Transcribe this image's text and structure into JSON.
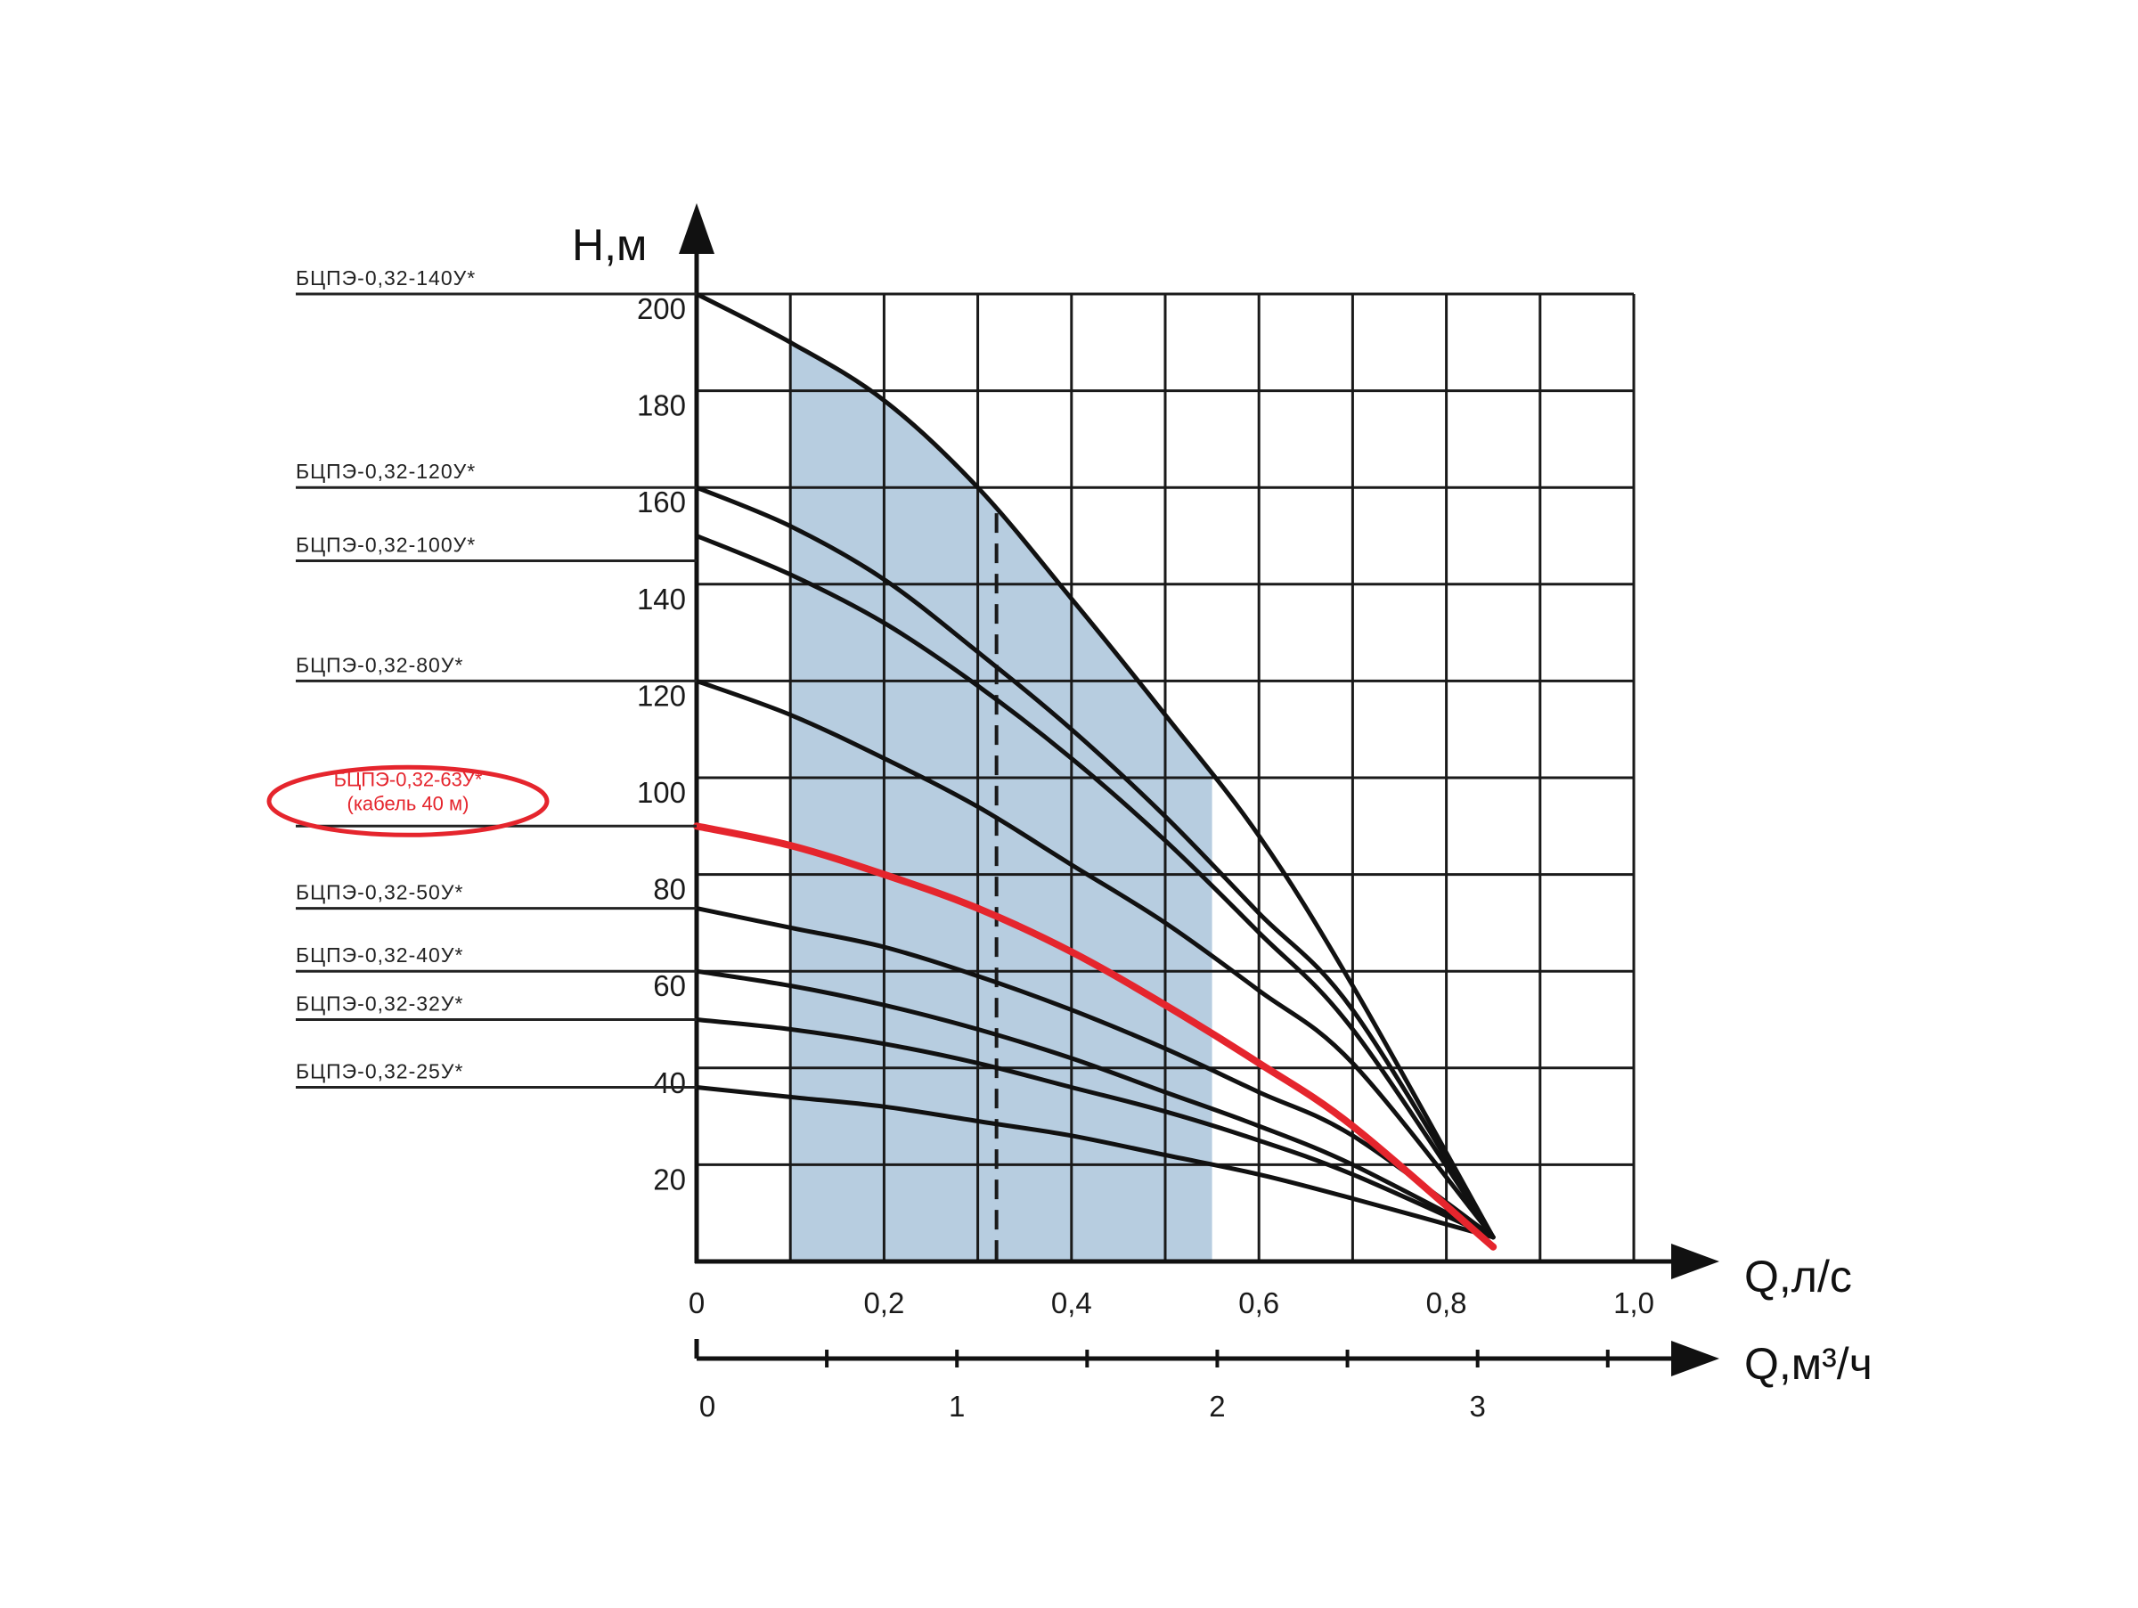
{
  "chart_data": {
    "type": "line",
    "ylabel": "H,м",
    "xlabel": "Q,л/с",
    "x2label": "Q,м³/ч",
    "xlim": [
      0,
      1.0
    ],
    "ylim": [
      0,
      200
    ],
    "grid": true,
    "x_ticks": [
      "0",
      "0,2",
      "0,4",
      "0,6",
      "0,8",
      "1,0"
    ],
    "x2_ticks": [
      "0",
      "1",
      "2",
      "3"
    ],
    "y_ticks": [
      "20",
      "40",
      "60",
      "80",
      "100",
      "120",
      "140",
      "160",
      "180",
      "200"
    ],
    "working_range_q_ls": [
      0.1,
      0.55
    ],
    "nominal_q_ls": 0.32,
    "highlight_color": "#e5252d",
    "shade_color": "#b7cde0",
    "series": [
      {
        "name": "БЦПЭ-0,32-140У*",
        "shut_off_head": 200,
        "highlight": false,
        "x": [
          0,
          0.1,
          0.2,
          0.3,
          0.4,
          0.5,
          0.6,
          0.7,
          0.85
        ],
        "y": [
          200,
          190,
          178,
          160,
          137,
          113,
          88,
          57,
          5
        ]
      },
      {
        "name": "БЦПЭ-0,32-120У*",
        "shut_off_head": 160,
        "highlight": false,
        "x": [
          0,
          0.1,
          0.2,
          0.3,
          0.4,
          0.5,
          0.6,
          0.7,
          0.85
        ],
        "y": [
          160,
          152,
          141,
          126,
          110,
          92,
          72,
          52,
          5
        ]
      },
      {
        "name": "БЦПЭ-0,32-100У*",
        "shut_off_head": 150,
        "highlight": false,
        "x": [
          0,
          0.1,
          0.2,
          0.3,
          0.4,
          0.5,
          0.6,
          0.7,
          0.85
        ],
        "y": [
          150,
          142,
          132,
          119,
          104,
          87,
          68,
          48,
          5
        ]
      },
      {
        "name": "БЦПЭ-0,32-80У*",
        "shut_off_head": 120,
        "highlight": false,
        "x": [
          0,
          0.1,
          0.2,
          0.3,
          0.4,
          0.5,
          0.6,
          0.7,
          0.85
        ],
        "y": [
          120,
          113,
          104,
          94,
          82,
          70,
          56,
          41,
          5
        ]
      },
      {
        "name": "БЦПЭ-0,32-63У*",
        "note": "(кабель 40 м)",
        "shut_off_head": 90,
        "highlight": true,
        "x": [
          0,
          0.1,
          0.2,
          0.3,
          0.4,
          0.5,
          0.6,
          0.7,
          0.85
        ],
        "y": [
          90,
          86,
          80,
          73,
          64,
          53,
          41,
          28,
          3
        ]
      },
      {
        "name": "БЦПЭ-0,32-50У*",
        "shut_off_head": 73,
        "highlight": false,
        "x": [
          0,
          0.1,
          0.2,
          0.3,
          0.4,
          0.5,
          0.6,
          0.7,
          0.85
        ],
        "y": [
          73,
          69,
          65,
          59,
          52,
          44,
          35,
          26,
          5
        ]
      },
      {
        "name": "БЦПЭ-0,32-40У*",
        "shut_off_head": 60,
        "highlight": false,
        "x": [
          0,
          0.1,
          0.2,
          0.3,
          0.4,
          0.5,
          0.6,
          0.7,
          0.85
        ],
        "y": [
          60,
          57,
          53,
          48,
          42,
          35,
          28,
          20,
          5
        ]
      },
      {
        "name": "БЦПЭ-0,32-32У*",
        "shut_off_head": 50,
        "highlight": false,
        "x": [
          0,
          0.1,
          0.2,
          0.3,
          0.4,
          0.5,
          0.6,
          0.7,
          0.85
        ],
        "y": [
          50,
          48,
          45,
          41,
          36,
          31,
          25,
          18,
          5
        ]
      },
      {
        "name": "БЦПЭ-0,32-25У*",
        "shut_off_head": 36,
        "highlight": false,
        "x": [
          0,
          0.1,
          0.2,
          0.3,
          0.4,
          0.5,
          0.6,
          0.7,
          0.85
        ],
        "y": [
          36,
          34,
          32,
          29,
          26,
          22,
          18,
          13,
          5
        ]
      }
    ]
  }
}
